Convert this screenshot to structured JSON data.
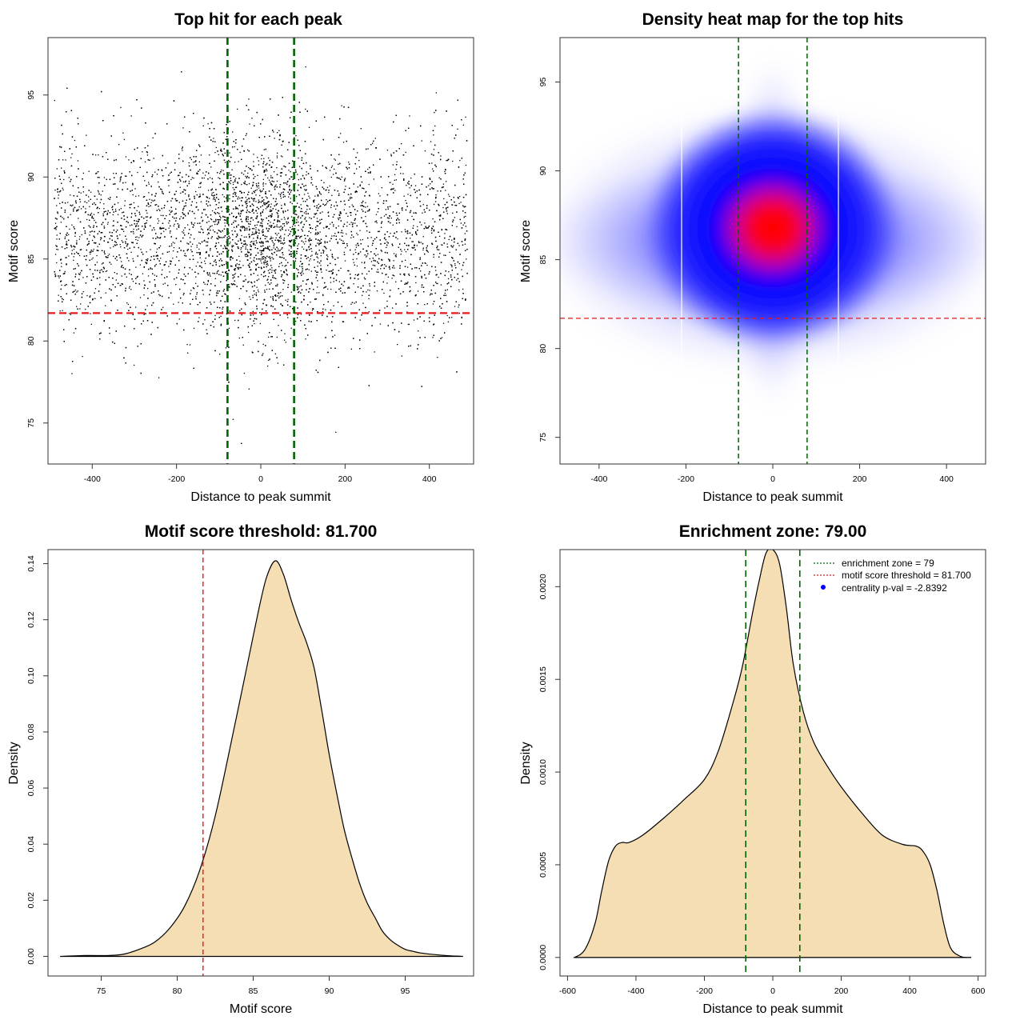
{
  "chart_data": [
    {
      "type": "scatter",
      "title": "Top hit for each peak",
      "xlabel": "Distance to peak summit",
      "ylabel": "Motif score",
      "xlim": [
        -505,
        505
      ],
      "ylim": [
        72.5,
        98.5
      ],
      "xticks": [
        -400,
        -200,
        0,
        200,
        400
      ],
      "yticks": [
        75,
        80,
        85,
        90,
        95
      ],
      "point_color": "#000000",
      "point_distribution": {
        "n": 9000,
        "x_range": [
          -490,
          490
        ],
        "y_center": 86.5,
        "y_sd": 3.0,
        "central_enrichment_sd": 80
      },
      "lines": {
        "threshold_y": 81.7,
        "threshold_color": "#e41a1c",
        "zone_x": [
          -79,
          79
        ],
        "zone_color": "#006400"
      }
    },
    {
      "type": "heatmap",
      "title": "Density heat map for the top hits",
      "xlabel": "Distance to peak summit",
      "ylabel": "Motif score",
      "xlim": [
        -490,
        490
      ],
      "ylim": [
        73.5,
        97.5
      ],
      "xticks": [
        -400,
        -200,
        0,
        200,
        400
      ],
      "yticks": [
        75,
        80,
        85,
        90,
        95
      ],
      "density_center": [
        0,
        86.7
      ],
      "colors": {
        "low": "#ffffff",
        "mid": "#0000ff",
        "high": "#ff0000"
      },
      "lines": {
        "threshold_y": 81.7,
        "threshold_color": "#e41a1c",
        "zone_x": [
          -79,
          79
        ],
        "zone_color": "#006400"
      }
    },
    {
      "type": "area",
      "title": "Motif score threshold: 81.700",
      "xlabel": "Motif score",
      "ylabel": "Density",
      "xlim": [
        71.5,
        99.5
      ],
      "ylim": [
        -0.007,
        0.145
      ],
      "xticks": [
        75,
        80,
        85,
        90,
        95
      ],
      "yticks": [
        "0.00",
        "0.02",
        "0.04",
        "0.06",
        "0.08",
        "0.10",
        "0.12",
        "0.14"
      ],
      "fill": "#f5deb3",
      "x": [
        72.3,
        74,
        75.5,
        76.5,
        77.5,
        78.5,
        79.5,
        80.5,
        81.5,
        82.5,
        83.5,
        84.5,
        85.5,
        86.0,
        86.5,
        87.0,
        87.5,
        88.0,
        88.5,
        89.0,
        89.5,
        90.0,
        90.5,
        91.0,
        91.5,
        92.0,
        92.5,
        93.0,
        93.5,
        94.0,
        94.5,
        95.0,
        95.5,
        96.0,
        97.0,
        98.0,
        98.8
      ],
      "y": [
        0.0,
        0.0003,
        0.0003,
        0.0008,
        0.0025,
        0.005,
        0.01,
        0.018,
        0.031,
        0.05,
        0.075,
        0.101,
        0.127,
        0.137,
        0.141,
        0.136,
        0.127,
        0.119,
        0.112,
        0.103,
        0.088,
        0.072,
        0.058,
        0.045,
        0.035,
        0.026,
        0.019,
        0.014,
        0.009,
        0.006,
        0.004,
        0.0025,
        0.0018,
        0.0012,
        0.0006,
        0.0002,
        0.0
      ],
      "lines": {
        "threshold_x": 81.7,
        "threshold_color": "#e41a1c"
      }
    },
    {
      "type": "area",
      "title": "Enrichment zone: 79.00",
      "xlabel": "Distance to peak summit",
      "ylabel": "Density",
      "xlim": [
        -622,
        622
      ],
      "ylim": [
        -0.0001,
        0.0022
      ],
      "xticks": [
        -600,
        -400,
        -200,
        0,
        200,
        400,
        600
      ],
      "yticks": [
        "0.0000",
        "0.0005",
        "0.0010",
        "0.0015",
        "0.0020"
      ],
      "fill": "#f5deb3",
      "x": [
        -580,
        -550,
        -520,
        -500,
        -480,
        -460,
        -440,
        -420,
        -380,
        -320,
        -260,
        -200,
        -160,
        -120,
        -90,
        -60,
        -40,
        -20,
        0,
        20,
        40,
        60,
        90,
        120,
        160,
        200,
        260,
        320,
        380,
        420,
        440,
        460,
        480,
        500,
        520,
        550,
        580
      ],
      "y": [
        0.0,
        4e-05,
        0.00018,
        0.00036,
        0.00052,
        0.0006,
        0.00062,
        0.00062,
        0.00066,
        0.00075,
        0.00085,
        0.00096,
        0.00111,
        0.00135,
        0.00156,
        0.00185,
        0.00203,
        0.00218,
        0.0022,
        0.00212,
        0.00188,
        0.00158,
        0.00132,
        0.00116,
        0.00103,
        0.00092,
        0.00078,
        0.00066,
        0.00061,
        0.0006,
        0.00057,
        0.0005,
        0.00036,
        0.00018,
        5e-05,
        5e-06,
        0.0
      ],
      "lines": {
        "zone_x": [
          -79,
          79
        ],
        "zone_color": "#006400"
      },
      "legend": {
        "position": "top-right",
        "entries": [
          {
            "label": "enrichment zone = 79",
            "style": "dotted-line",
            "color": "#006400"
          },
          {
            "label": "motif score threshold = 81.700",
            "style": "dotted-line",
            "color": "#e41a1c"
          },
          {
            "label": "centrality p-val = -2.8392",
            "style": "point",
            "color": "#0000ff"
          }
        ]
      }
    }
  ]
}
